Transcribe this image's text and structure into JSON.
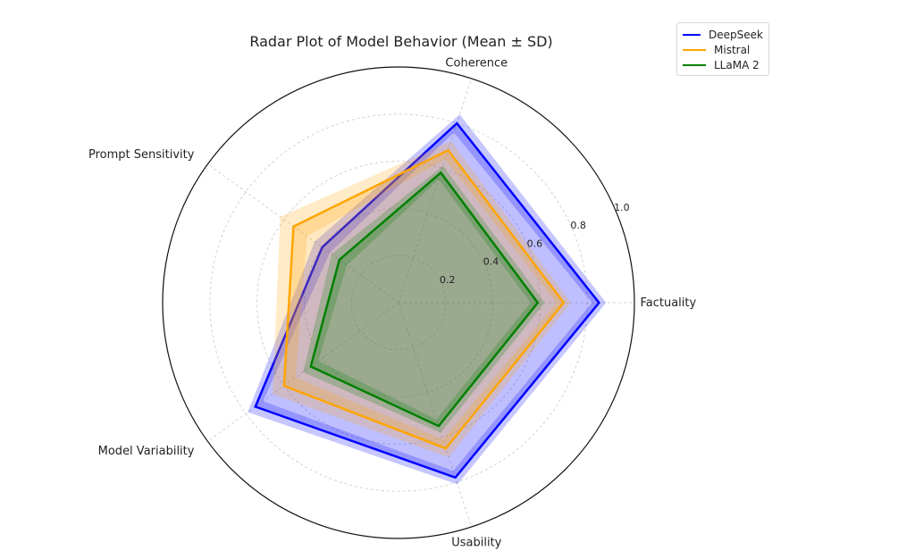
{
  "chart_data": {
    "type": "radar",
    "title": "Radar Plot of Model Behavior (Mean ± SD)",
    "axes": [
      "Factuality",
      "Coherence",
      "Prompt Sensitivity",
      "Model Variability",
      "Usability"
    ],
    "rlim": [
      0,
      1.0
    ],
    "rticks": [
      "0.2",
      "0.4",
      "0.6",
      "0.8",
      "1.0"
    ],
    "grid": true,
    "legend_position": "top-right",
    "series": [
      {
        "name": "DeepSeek",
        "color": "#0000ff",
        "mean": [
          0.85,
          0.8,
          0.4,
          0.75,
          0.78
        ],
        "sd": [
          0.03,
          0.04,
          0.04,
          0.04,
          0.03
        ]
      },
      {
        "name": "Mistral",
        "color": "#ffa500",
        "mean": [
          0.7,
          0.68,
          0.55,
          0.6,
          0.65
        ],
        "sd": [
          0.03,
          0.04,
          0.07,
          0.06,
          0.04
        ]
      },
      {
        "name": "LLaMA 2",
        "color": "#008000",
        "mean": [
          0.59,
          0.58,
          0.31,
          0.46,
          0.55
        ],
        "sd": [
          0.03,
          0.03,
          0.04,
          0.04,
          0.03
        ]
      }
    ]
  }
}
